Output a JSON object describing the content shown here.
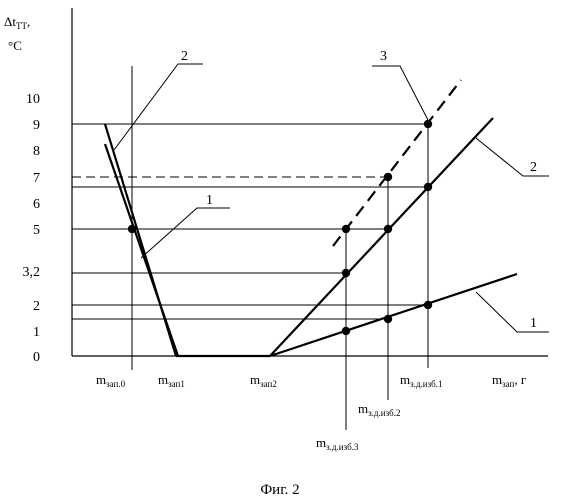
{
  "y_axis": {
    "label_main": "Δt",
    "label_sub": "ТТ",
    "label_comma": ",",
    "unit": "°C",
    "ticks": [
      {
        "label": "0",
        "value": 0
      },
      {
        "label": "1",
        "value": 1
      },
      {
        "label": "2",
        "value": 2
      },
      {
        "label": "3,2",
        "value": 3.2
      },
      {
        "label": "5",
        "value": 5
      },
      {
        "label": "6",
        "value": 6
      },
      {
        "label": "7",
        "value": 7
      },
      {
        "label": "8",
        "value": 8
      },
      {
        "label": "9",
        "value": 9
      },
      {
        "label": "10",
        "value": 10
      }
    ]
  },
  "x_axis": {
    "label_main": "m",
    "label_sub": "зап",
    "label_rest": ", г",
    "markers": [
      {
        "main": "m",
        "sub": "зап.0"
      },
      {
        "main": "m",
        "sub": "зап1"
      },
      {
        "main": "m",
        "sub": "зап2"
      },
      {
        "main": "m",
        "sub": "з.д.изб.1"
      },
      {
        "main": "m",
        "sub": "з.д.изб.2"
      },
      {
        "main": "m",
        "sub": "з.д.изб.3"
      }
    ]
  },
  "curve_labels": [
    "1",
    "2",
    "1",
    "2",
    "3"
  ],
  "caption": "Фиг. 2",
  "colors": {
    "ink": "#000000",
    "background": "#ffffff"
  }
}
